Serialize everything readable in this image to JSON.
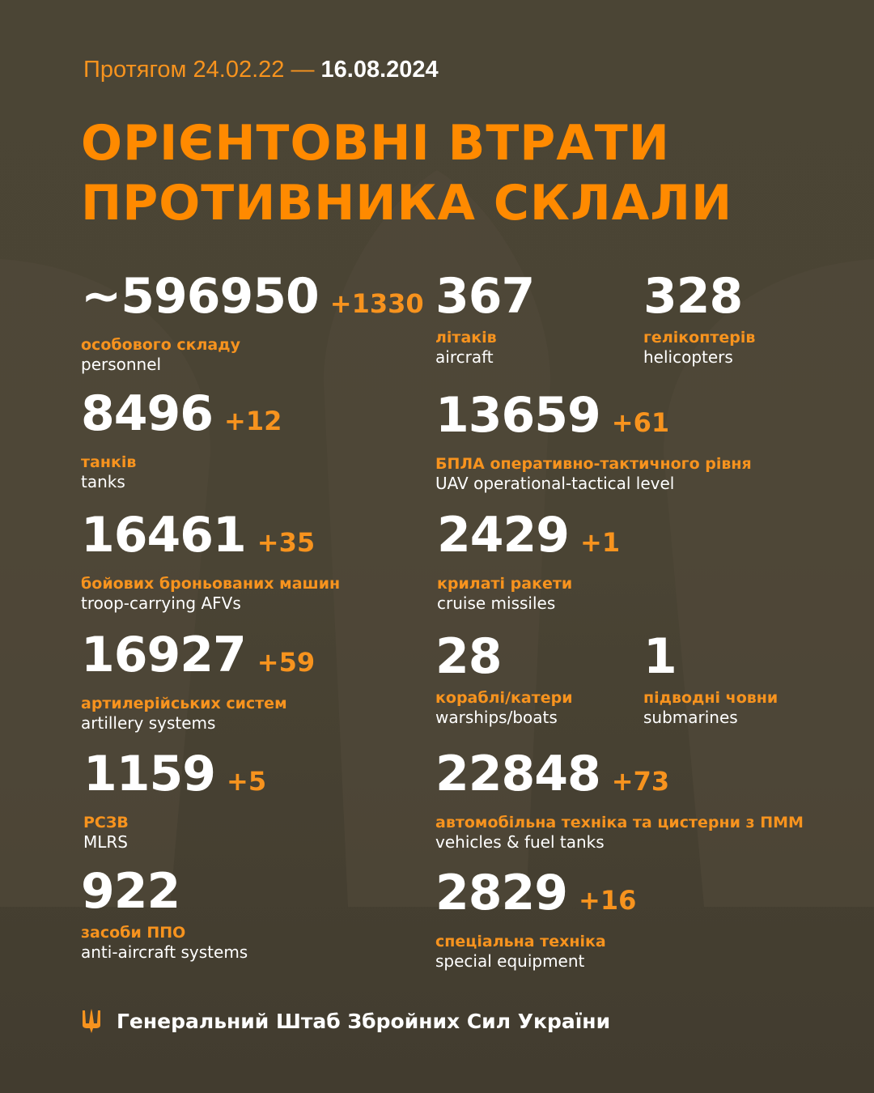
{
  "header": {
    "period_prefix": "Протягом 24.02.22 —",
    "period_end": "16.08.2024",
    "title_line1": "ОРІЄНТОВНІ ВТРАТИ",
    "title_line2": "ПРОТИВНИКА СКЛАЛИ"
  },
  "items": [
    {
      "value": "~596950",
      "delta": "+1330",
      "ua": "особового складу",
      "en": "personnel"
    },
    {
      "value": "367",
      "delta": "",
      "ua": "літаків",
      "en": "aircraft"
    },
    {
      "value": "328",
      "delta": "",
      "ua": "гелікоптерів",
      "en": "helicopters"
    },
    {
      "value": "8496",
      "delta": "+12",
      "ua": "танків",
      "en": "tanks"
    },
    {
      "value": "13659",
      "delta": "+61",
      "ua": "БПЛА оперативно-тактичного рівня",
      "en": "UAV operational-tactical level"
    },
    {
      "value": "16461",
      "delta": "+35",
      "ua": "бойових броньованих машин",
      "en": "troop-carrying AFVs"
    },
    {
      "value": "2429",
      "delta": "+1",
      "ua": "крилаті ракети",
      "en": "cruise missiles"
    },
    {
      "value": "16927",
      "delta": "+59",
      "ua": "артилерійських систем",
      "en": "artillery systems"
    },
    {
      "value": "28",
      "delta": "",
      "ua": "кораблі/катери",
      "en": "warships/boats"
    },
    {
      "value": "1",
      "delta": "",
      "ua": "підводні човни",
      "en": "submarines"
    },
    {
      "value": "1159",
      "delta": "+5",
      "ua": "РСЗВ",
      "en": "MLRS"
    },
    {
      "value": "22848",
      "delta": "+73",
      "ua": "автомобільна техніка та цистерни з ПММ",
      "en": "vehicles & fuel tanks"
    },
    {
      "value": "922",
      "delta": "",
      "ua": "засоби ППО",
      "en": "anti-aircraft systems"
    },
    {
      "value": "2829",
      "delta": "+16",
      "ua": "спеціальна техніка",
      "en": "special equipment"
    }
  ],
  "footer": {
    "org": "Генеральний Штаб Збройних Сил України",
    "logo_icon": "trident-icon"
  },
  "colors": {
    "accent": "#f7931e",
    "background": "#4a4434",
    "text": "#ffffff"
  }
}
